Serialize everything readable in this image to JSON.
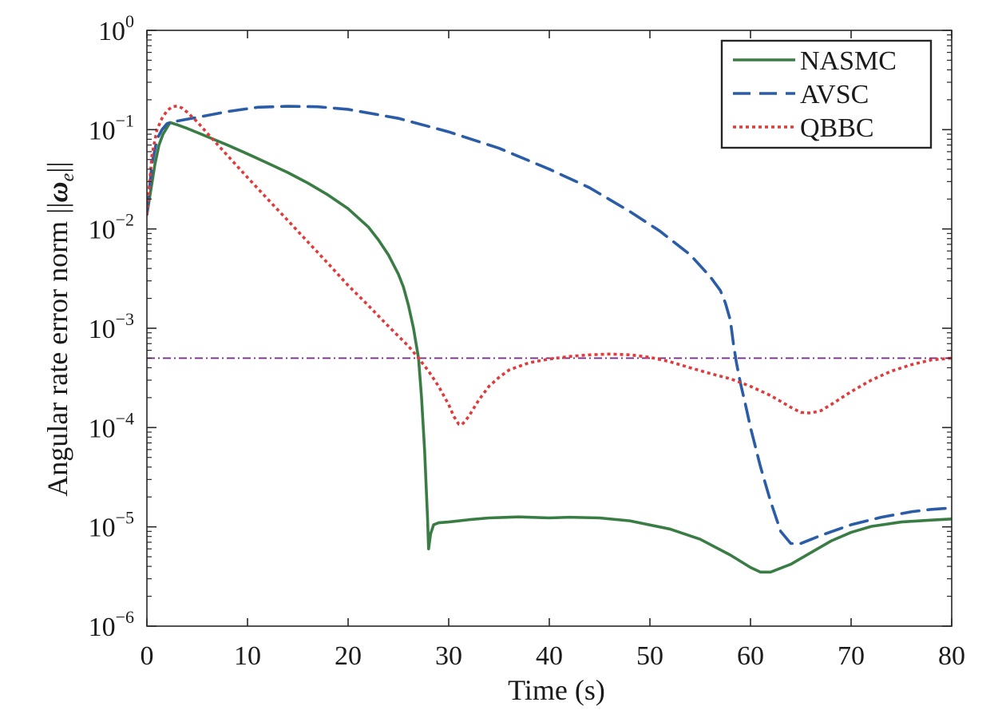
{
  "chart_data": {
    "type": "line",
    "title": "",
    "xlabel": "Time (s)",
    "ylabel": {
      "prefix": "Angular rate error norm ",
      "open": "||",
      "symbol": "ω",
      "subscript": "e",
      "close": "||"
    },
    "xlim": [
      0,
      80
    ],
    "ylim": [
      1e-06,
      1
    ],
    "yscale": "log",
    "x_ticks": [
      "0",
      "10",
      "20",
      "30",
      "40",
      "50",
      "60",
      "70",
      "80"
    ],
    "y_ticks": [
      {
        "base": "10",
        "exp": "0"
      },
      {
        "base": "10",
        "exp": "−1"
      },
      {
        "base": "10",
        "exp": "−2"
      },
      {
        "base": "10",
        "exp": "−3"
      },
      {
        "base": "10",
        "exp": "−4"
      },
      {
        "base": "10",
        "exp": "−5"
      },
      {
        "base": "10",
        "exp": "−6"
      }
    ],
    "grid": false,
    "legend_position": "top-right",
    "threshold": {
      "y": 0.0005,
      "color": "#7b2d8e",
      "style": "dash-dot"
    },
    "series": [
      {
        "name": "NASMC",
        "color": "#3a7d44",
        "style": "solid",
        "x": [
          0,
          0.4,
          0.8,
          1.2,
          1.6,
          2.0,
          2.3,
          3,
          4,
          6,
          8,
          10,
          12,
          14,
          16,
          18,
          20,
          22,
          23,
          24,
          25,
          25.5,
          26,
          26.5,
          27,
          27.3,
          27.6,
          27.9,
          28.0,
          28.2,
          28.5,
          29,
          30,
          32,
          34,
          37,
          40,
          42,
          45,
          48,
          52,
          55,
          58,
          60,
          61,
          62,
          64,
          66,
          68,
          70,
          72,
          75,
          78,
          80
        ],
        "y": [
          0.014,
          0.025,
          0.045,
          0.07,
          0.09,
          0.105,
          0.118,
          0.112,
          0.103,
          0.085,
          0.07,
          0.057,
          0.046,
          0.037,
          0.029,
          0.022,
          0.016,
          0.0105,
          0.0078,
          0.0055,
          0.0035,
          0.0026,
          0.0017,
          0.001,
          0.0005,
          0.0002,
          6e-05,
          1.2e-05,
          6e-06,
          8.5e-06,
          1.05e-05,
          1.1e-05,
          1.12e-05,
          1.18e-05,
          1.23e-05,
          1.26e-05,
          1.23e-05,
          1.25e-05,
          1.23e-05,
          1.15e-05,
          9.5e-06,
          7.5e-06,
          5.2e-06,
          3.9e-06,
          3.5e-06,
          3.5e-06,
          4.2e-06,
          5.5e-06,
          7.2e-06,
          8.8e-06,
          1.01e-05,
          1.12e-05,
          1.17e-05,
          1.2e-05
        ]
      },
      {
        "name": "AVSC",
        "color": "#2a5ca8",
        "style": "dashed",
        "x": [
          0,
          0.5,
          1,
          1.5,
          2,
          2.5,
          3,
          5,
          8,
          11,
          14,
          17,
          20,
          25,
          30,
          35,
          40,
          44,
          48,
          51,
          54,
          56,
          57,
          57.5,
          58,
          58.3,
          58.6,
          59,
          59.5,
          60,
          61,
          62,
          63,
          64,
          65,
          67,
          70,
          73,
          76,
          78,
          80
        ],
        "y": [
          0.014,
          0.045,
          0.08,
          0.1,
          0.115,
          0.12,
          0.122,
          0.133,
          0.152,
          0.168,
          0.172,
          0.17,
          0.16,
          0.13,
          0.095,
          0.065,
          0.04,
          0.026,
          0.015,
          0.0095,
          0.0055,
          0.0033,
          0.0024,
          0.0018,
          0.0012,
          0.0007,
          0.00045,
          0.00028,
          0.00017,
          0.0001,
          4e-05,
          1.8e-05,
          9e-06,
          6.8e-06,
          6.8e-06,
          8.2e-06,
          1.05e-05,
          1.25e-05,
          1.42e-05,
          1.5e-05,
          1.55e-05
        ]
      },
      {
        "name": "QBBC",
        "color": "#e03a3a",
        "style": "dotted",
        "x": [
          0,
          0.5,
          1,
          1.5,
          2,
          2.5,
          3,
          3.5,
          4,
          5,
          6,
          8,
          10,
          12,
          14,
          16,
          18,
          20,
          22,
          24,
          26,
          27,
          28,
          29,
          30,
          30.5,
          31,
          31.3,
          31.6,
          32,
          33,
          34,
          35,
          36,
          38,
          40,
          42,
          44,
          46,
          48,
          50,
          52,
          54,
          56,
          58,
          60,
          62,
          64,
          65,
          66,
          67,
          68,
          70,
          72,
          74,
          76,
          78,
          80
        ],
        "y": [
          0.014,
          0.055,
          0.1,
          0.13,
          0.155,
          0.17,
          0.173,
          0.165,
          0.15,
          0.12,
          0.092,
          0.055,
          0.033,
          0.02,
          0.0122,
          0.0074,
          0.0045,
          0.0027,
          0.0017,
          0.00105,
          0.00066,
          0.0005,
          0.00037,
          0.00026,
          0.00017,
          0.00013,
          0.000108,
          0.000107,
          0.000115,
          0.00013,
          0.00019,
          0.00026,
          0.00032,
          0.00038,
          0.00045,
          0.00049,
          0.00052,
          0.00054,
          0.00055,
          0.00054,
          0.00051,
          0.00046,
          0.0004,
          0.00035,
          0.00031,
          0.00026,
          0.00021,
          0.00016,
          0.000142,
          0.00014,
          0.000148,
          0.00017,
          0.00023,
          0.0003,
          0.00037,
          0.00043,
          0.00048,
          0.0005
        ]
      }
    ]
  }
}
